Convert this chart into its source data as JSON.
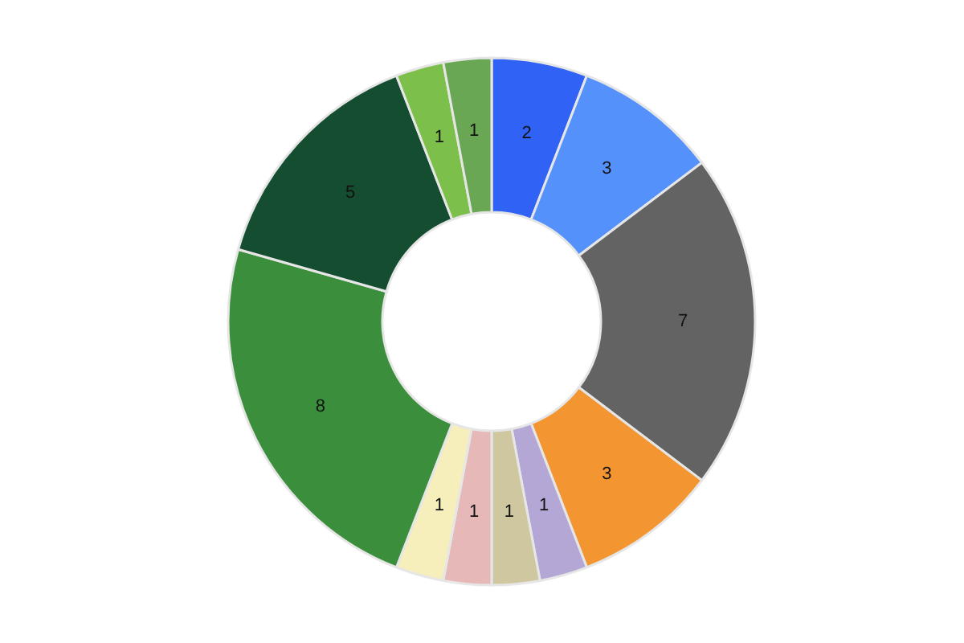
{
  "chart_data": {
    "type": "donut",
    "categories": [
      null,
      null,
      null,
      null,
      null,
      null,
      null,
      null,
      null,
      null,
      null,
      null
    ],
    "values": [
      2,
      3,
      7,
      3,
      1,
      1,
      1,
      1,
      8,
      5,
      1,
      1
    ],
    "colors": [
      "#2f62f5",
      "#5591fb",
      "#636363",
      "#f39530",
      "#b4a7d6",
      "#cfc79f",
      "#e6b8b8",
      "#f6eebb",
      "#3b8e3b",
      "#154d30",
      "#7cbf4a",
      "#6aa754"
    ],
    "data_labels": true,
    "legend": false
  }
}
